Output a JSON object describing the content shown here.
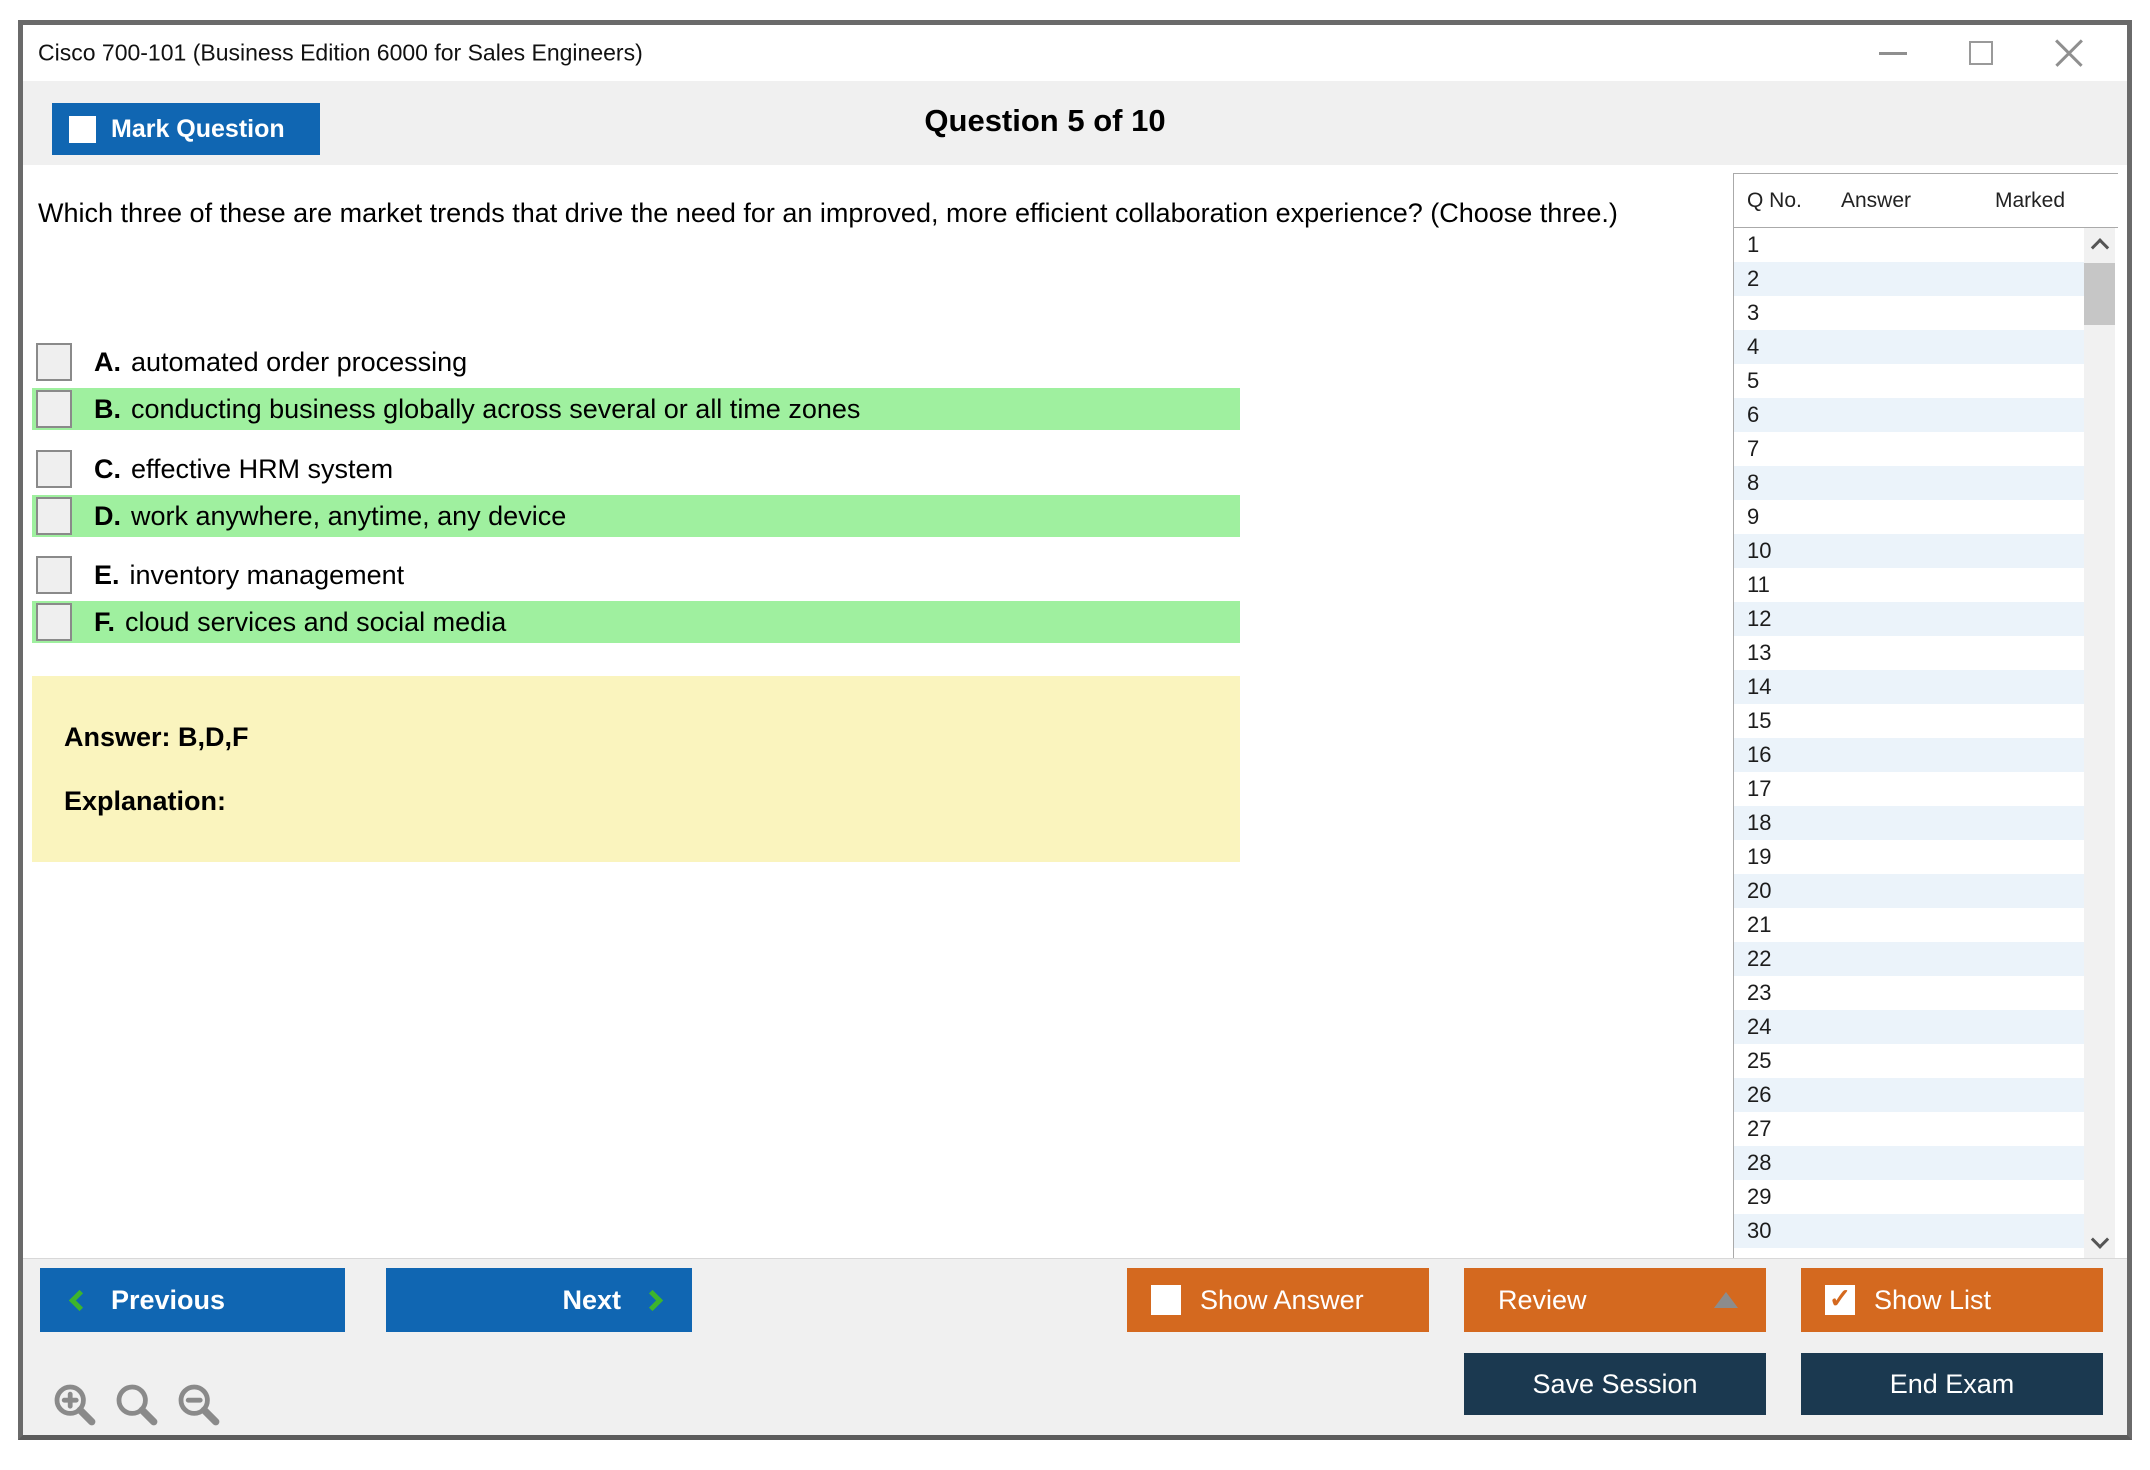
{
  "window": {
    "title": "Cisco 700-101 (Business Edition 6000 for Sales Engineers)"
  },
  "toolbar": {
    "mark_question_label": "Mark Question",
    "heading": "Question 5 of 10"
  },
  "question": {
    "text": "Which three of these are market trends that drive the need for an improved, more efficient collaboration experience? (Choose three.)",
    "options": [
      {
        "letter": "A.",
        "text": "automated order processing",
        "highlighted": false,
        "checked": false
      },
      {
        "letter": "B.",
        "text": "conducting business globally across several or all time zones",
        "highlighted": true,
        "checked": false
      },
      {
        "letter": "C.",
        "text": "effective HRM system",
        "highlighted": false,
        "checked": false
      },
      {
        "letter": "D.",
        "text": "work anywhere, anytime, any device",
        "highlighted": true,
        "checked": false
      },
      {
        "letter": "E.",
        "text": "inventory management",
        "highlighted": false,
        "checked": false
      },
      {
        "letter": "F.",
        "text": "cloud services and social media",
        "highlighted": true,
        "checked": false
      }
    ],
    "answer_label": "Answer: B,D,F",
    "explanation_label": "Explanation:"
  },
  "sidebar": {
    "headers": {
      "q_no": "Q No.",
      "answer": "Answer",
      "marked": "Marked"
    },
    "rows": [
      "1",
      "2",
      "3",
      "4",
      "5",
      "6",
      "7",
      "8",
      "9",
      "10",
      "11",
      "12",
      "13",
      "14",
      "15",
      "16",
      "17",
      "18",
      "19",
      "20",
      "21",
      "22",
      "23",
      "24",
      "25",
      "26",
      "27",
      "28",
      "29",
      "30"
    ]
  },
  "footer": {
    "previous_label": "Previous",
    "next_label": "Next",
    "show_answer_label": "Show Answer",
    "review_label": "Review",
    "show_list_label": "Show List",
    "save_session_label": "Save Session",
    "end_exam_label": "End Exam",
    "show_answer_checked": false,
    "show_list_checked": true,
    "mark_question_checked": false
  },
  "icons": {
    "check_glyph": "✓",
    "mark_question_checkbox": "unchecked-checkbox",
    "show_answer_checkbox": "unchecked-checkbox",
    "show_list_checkbox": "checked-checkbox",
    "previous_chevron": "chevron-left",
    "next_chevron": "chevron-right",
    "review_dropup": "triangle-up",
    "scroll_icons": [
      "chevron-up",
      "chevron-down"
    ],
    "zoom_icons": [
      "zoom-in",
      "magnifier",
      "zoom-out"
    ],
    "window_control_icons": [
      "minimize",
      "maximize",
      "close"
    ]
  },
  "colors": {
    "button_blue": "#1066B2",
    "button_orange": "#D4691F",
    "button_navy": "#1B3950",
    "option_highlight_green": "#9FF09F",
    "answer_box_yellow": "#FAF4BE",
    "row_stripe_blue": "#EBF3FA",
    "toolbar_gray": "#F0F0F0",
    "chevron_green": "#3DB52C"
  }
}
